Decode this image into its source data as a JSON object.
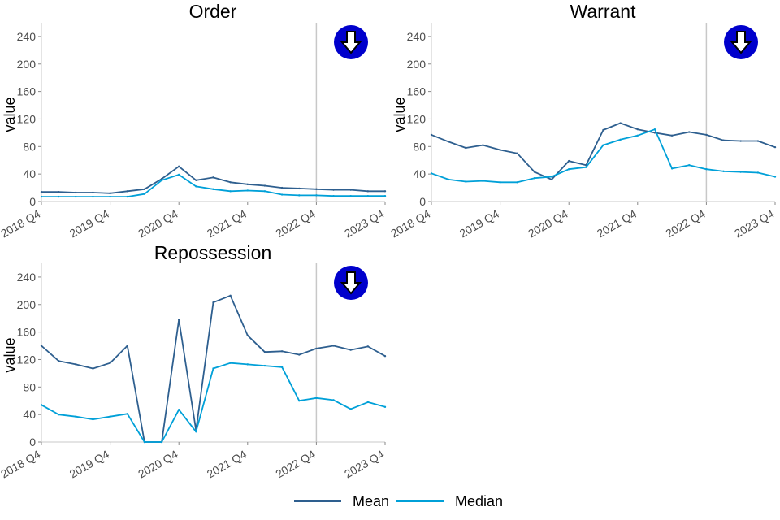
{
  "chart_data": [
    {
      "type": "line",
      "title": "Order",
      "ylabel": "value",
      "xlabel": "",
      "ylim": [
        0,
        260
      ],
      "yticks": [
        0,
        40,
        80,
        120,
        160,
        200,
        240
      ],
      "xticks": [
        "2018 Q4",
        "2019 Q4",
        "2020 Q4",
        "2021 Q4",
        "2022 Q4",
        "2023 Q4"
      ],
      "vline_at": "2022 Q4",
      "trend_indicator": "down-arrow",
      "x": [
        "2018 Q4",
        "2019 Q1",
        "2019 Q2",
        "2019 Q3",
        "2019 Q4",
        "2020 Q1",
        "2020 Q2",
        "2020 Q3",
        "2020 Q4",
        "2021 Q1",
        "2021 Q2",
        "2021 Q3",
        "2021 Q4",
        "2022 Q1",
        "2022 Q2",
        "2022 Q3",
        "2022 Q4",
        "2023 Q1",
        "2023 Q2",
        "2023 Q3",
        "2023 Q4"
      ],
      "series": [
        {
          "name": "Mean",
          "values": [
            14,
            14,
            13,
            13,
            12,
            15,
            18,
            33,
            51,
            31,
            35,
            28,
            25,
            23,
            20,
            19,
            18,
            17,
            17,
            15,
            15
          ]
        },
        {
          "name": "Median",
          "values": [
            7,
            7,
            7,
            7,
            7,
            7,
            11,
            31,
            39,
            22,
            18,
            15,
            16,
            15,
            10,
            9,
            9,
            8,
            8,
            8,
            8
          ]
        }
      ]
    },
    {
      "type": "line",
      "title": "Warrant",
      "ylabel": "value",
      "xlabel": "",
      "ylim": [
        0,
        260
      ],
      "yticks": [
        0,
        40,
        80,
        120,
        160,
        200,
        240
      ],
      "xticks": [
        "2018 Q4",
        "2019 Q4",
        "2020 Q4",
        "2021 Q4",
        "2022 Q4",
        "2023 Q4"
      ],
      "vline_at": "2022 Q4",
      "trend_indicator": "down-arrow",
      "x": [
        "2018 Q4",
        "2019 Q1",
        "2019 Q2",
        "2019 Q3",
        "2019 Q4",
        "2020 Q1",
        "2020 Q2",
        "2020 Q3",
        "2020 Q4",
        "2021 Q1",
        "2021 Q2",
        "2021 Q3",
        "2021 Q4",
        "2022 Q1",
        "2022 Q2",
        "2022 Q3",
        "2022 Q4",
        "2023 Q1",
        "2023 Q2",
        "2023 Q3",
        "2023 Q4"
      ],
      "series": [
        {
          "name": "Mean",
          "values": [
            97,
            87,
            78,
            82,
            75,
            70,
            43,
            32,
            59,
            53,
            104,
            114,
            105,
            100,
            96,
            101,
            97,
            89,
            88,
            88,
            79
          ]
        },
        {
          "name": "Median",
          "values": [
            41,
            32,
            29,
            30,
            28,
            28,
            34,
            36,
            47,
            50,
            82,
            90,
            96,
            105,
            48,
            53,
            47,
            44,
            43,
            42,
            36
          ]
        }
      ]
    },
    {
      "type": "line",
      "title": "Repossession",
      "ylabel": "value",
      "xlabel": "",
      "ylim": [
        0,
        260
      ],
      "yticks": [
        0,
        40,
        80,
        120,
        160,
        200,
        240
      ],
      "xticks": [
        "2018 Q4",
        "2019 Q4",
        "2020 Q4",
        "2021 Q4",
        "2022 Q4",
        "2023 Q4"
      ],
      "vline_at": "2022 Q4",
      "trend_indicator": "down-arrow",
      "x": [
        "2018 Q4",
        "2019 Q1",
        "2019 Q2",
        "2019 Q3",
        "2019 Q4",
        "2020 Q1",
        "2020 Q2",
        "2020 Q3",
        "2020 Q4",
        "2021 Q1",
        "2021 Q2",
        "2021 Q3",
        "2021 Q4",
        "2022 Q1",
        "2022 Q2",
        "2022 Q3",
        "2022 Q4",
        "2023 Q1",
        "2023 Q2",
        "2023 Q3",
        "2023 Q4"
      ],
      "series": [
        {
          "name": "Mean",
          "values": [
            140,
            118,
            113,
            107,
            115,
            140,
            0,
            0,
            178,
            17,
            203,
            213,
            155,
            131,
            132,
            127,
            136,
            140,
            134,
            139,
            125
          ]
        },
        {
          "name": "Median",
          "values": [
            54,
            40,
            37,
            33,
            37,
            41,
            0,
            0,
            47,
            15,
            107,
            115,
            113,
            111,
            109,
            60,
            64,
            61,
            48,
            58,
            51
          ]
        }
      ]
    }
  ],
  "legend": {
    "position": "bottom",
    "items": [
      {
        "label": "Mean",
        "color": "#2e5f8f"
      },
      {
        "label": "Median",
        "color": "#00a0d8"
      }
    ]
  },
  "colors": {
    "mean": "#2e5f8f",
    "median": "#00a0d8",
    "axis": "#c8c8c8",
    "vline": "#c8c8c8",
    "indicator_fill": "#0000cc"
  }
}
